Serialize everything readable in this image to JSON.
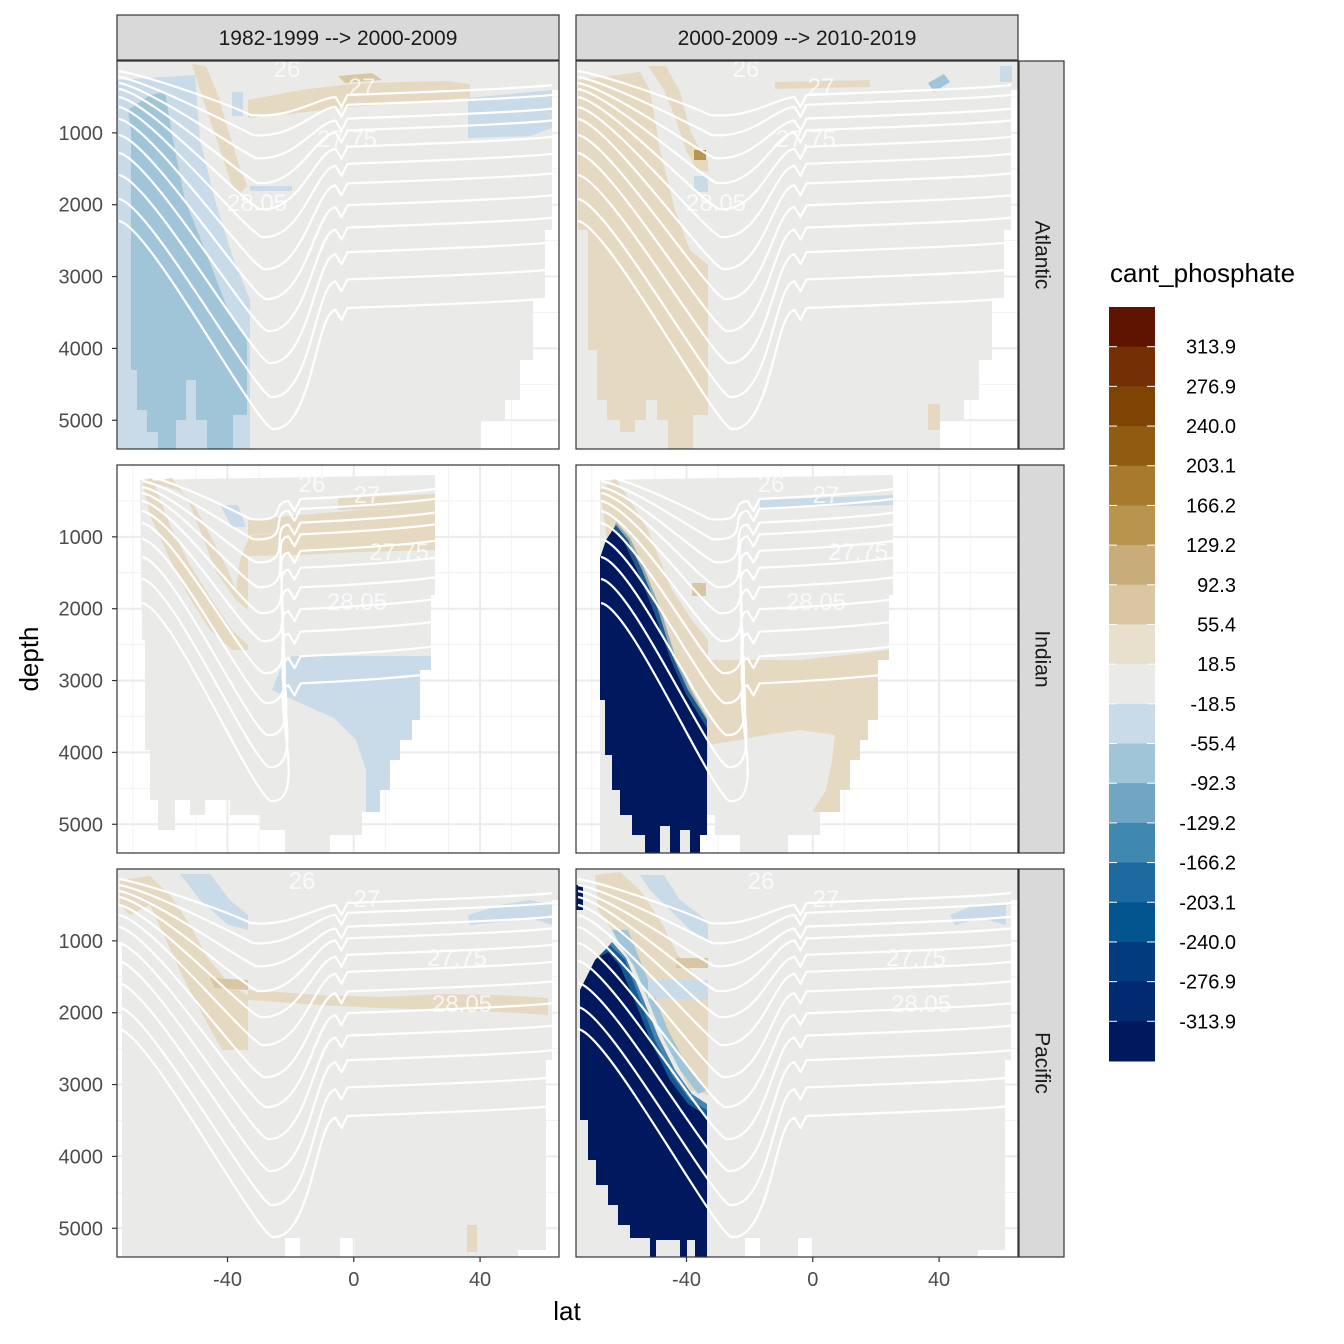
{
  "chart_data": {
    "type": "heatmap",
    "x_label": "lat",
    "y_label": "depth",
    "x_ticks": [
      -40,
      0,
      40
    ],
    "y_ticks": [
      1000,
      2000,
      3000,
      4000,
      5000
    ],
    "x_range": [
      -75,
      65
    ],
    "y_range": [
      0,
      5400
    ],
    "columns": [
      "1982-1999 --> 2000-2009",
      "2000-2009 --> 2010-2019"
    ],
    "rows": [
      "Atlantic",
      "Indian",
      "Pacific"
    ],
    "legend": {
      "title": "cant_phosphate",
      "breaks": [
        "313.9",
        "276.9",
        "240.0",
        "203.1",
        "166.2",
        "129.2",
        "92.3",
        "55.4",
        "18.5",
        "-18.5",
        "-55.4",
        "-92.3",
        "-129.2",
        "-166.2",
        "-203.1",
        "-240.0",
        "-276.9",
        "-313.9"
      ],
      "colors": [
        "#5f1402",
        "#743004",
        "#7f4304",
        "#8f5c12",
        "#a77a2e",
        "#b9944e",
        "#c8ad7a",
        "#d9c7a3",
        "#e9dfcd",
        "#eaebe9",
        "#c9dbe8",
        "#a1c5d8",
        "#70a6c4",
        "#3f89b1",
        "#1c6aa0",
        "#035590",
        "#023c7e",
        "#012a70",
        "#00195e"
      ]
    },
    "contour_labels": [
      "26",
      "27",
      "27.75",
      "28.05"
    ],
    "panels": [
      {
        "row": "Atlantic",
        "column": "1982-1999 --> 2000-2009",
        "south_zone": "-92.3 to -55.4",
        "interior": "-18.5 to 18.5"
      },
      {
        "row": "Atlantic",
        "column": "2000-2009 --> 2010-2019",
        "south_zone": "18.5 to 55.4",
        "interior": "-18.5 to 18.5"
      },
      {
        "row": "Indian",
        "column": "1982-1999 --> 2000-2009",
        "south_zone": "-18.5 to 18.5",
        "interior": "-18.5 to 18.5"
      },
      {
        "row": "Indian",
        "column": "2000-2009 --> 2010-2019",
        "south_zone": "< -313.9",
        "interior": "18.5 to 55.4"
      },
      {
        "row": "Pacific",
        "column": "1982-1999 --> 2000-2009",
        "south_zone": "-18.5 to 18.5",
        "interior": "-18.5 to 18.5"
      },
      {
        "row": "Pacific",
        "column": "2000-2009 --> 2010-2019",
        "south_zone": "< -313.9",
        "interior": "-18.5 to 18.5"
      }
    ]
  }
}
